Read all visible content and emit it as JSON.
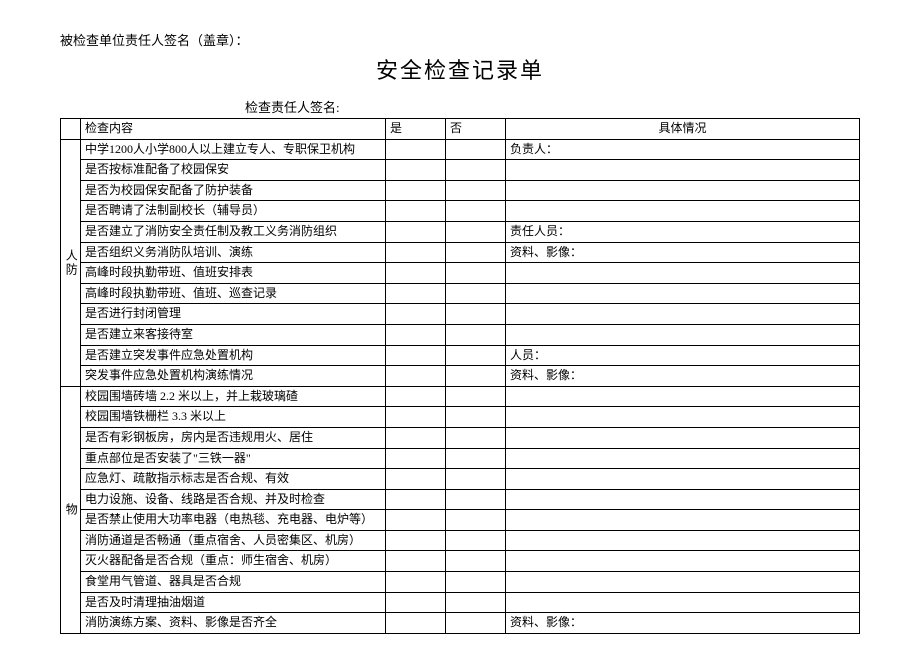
{
  "header_note": "被检查单位责任人签名（盖章）：",
  "title": "安全检查记录单",
  "signature_label": "检查责任人签名:",
  "columns": {
    "content": "检查内容",
    "yes": "是",
    "no": "否",
    "detail": "具体情况"
  },
  "sections": [
    {
      "category": "人防",
      "rows": [
        {
          "content": "中学1200人小学800人以上建立专人、专职保卫机构",
          "detail": "负责人："
        },
        {
          "content": "是否按标准配备了校园保安",
          "detail": ""
        },
        {
          "content": "是否为校园保安配备了防护装备",
          "detail": ""
        },
        {
          "content": "是否聘请了法制副校长（辅导员）",
          "detail": ""
        },
        {
          "content": "是否建立了消防安全责任制及教工义务消防组织",
          "detail": "责任人员："
        },
        {
          "content": "是否组织义务消防队培训、演练",
          "detail": "资料、影像："
        },
        {
          "content": "高峰时段执勤带班、值班安排表",
          "detail": ""
        },
        {
          "content": "高峰时段执勤带班、值班、巡查记录",
          "detail": ""
        },
        {
          "content": "是否进行封闭管理",
          "detail": ""
        },
        {
          "content": "是否建立来客接待室",
          "detail": ""
        },
        {
          "content": "是否建立突发事件应急处置机构",
          "detail": "人员："
        },
        {
          "content": "突发事件应急处置机构演练情况",
          "detail": "资料、影像："
        }
      ]
    },
    {
      "category": "物",
      "rows": [
        {
          "content": "校园围墙砖墙 2.2 米以上，并上栽玻璃碴",
          "detail": ""
        },
        {
          "content": "校园围墙铁栅栏 3.3 米以上",
          "detail": ""
        },
        {
          "content": "是否有彩钢板房，房内是否违规用火、居住",
          "detail": ""
        },
        {
          "content": "重点部位是否安装了\"三铁一器\"",
          "detail": ""
        },
        {
          "content": "应急灯、疏散指示标志是否合规、有效",
          "detail": ""
        },
        {
          "content": "电力设施、设备、线路是否合规、并及时检查",
          "detail": ""
        },
        {
          "content": "是否禁止使用大功率电器（电热毯、充电器、电炉等）",
          "detail": ""
        },
        {
          "content": "消防通道是否畅通（重点宿舍、人员密集区、机房）",
          "detail": ""
        },
        {
          "content": "灭火器配备是否合规（重点：师生宿舍、机房）",
          "detail": ""
        },
        {
          "content": "食堂用气管道、器具是否合规",
          "detail": ""
        },
        {
          "content": "是否及时清理抽油烟道",
          "detail": ""
        },
        {
          "content": "消防演练方案、资料、影像是否齐全",
          "detail": "资料、影像："
        }
      ]
    }
  ]
}
